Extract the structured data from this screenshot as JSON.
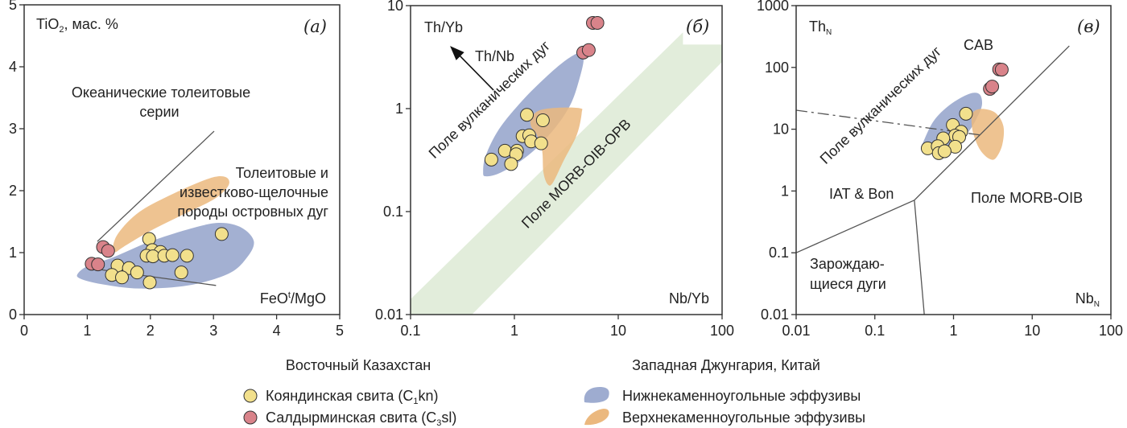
{
  "colors": {
    "yellow": "#f2e08c",
    "red": "#d9838a",
    "blue": "#9eacd0",
    "orange": "#ebb87e",
    "green": "#e2eddb",
    "line": "#555555"
  },
  "chart_data": [
    {
      "id": "a",
      "type": "scatter",
      "panel_label": "(а)",
      "ylabel": {
        "main": "TiO",
        "sub": "2",
        "rest": ", мас. %"
      },
      "xlabel": {
        "main": "FeO",
        "sup": "t",
        "rest": "/MgO"
      },
      "xscale": "linear",
      "yscale": "linear",
      "xlim": [
        0,
        5
      ],
      "ylim": [
        0,
        5
      ],
      "xticks": [
        "0",
        "1",
        "2",
        "3",
        "4",
        "5"
      ],
      "yticks": [
        "0",
        "1",
        "2",
        "3",
        "4",
        "5"
      ],
      "annotations": {
        "oceanic_1": "Океанические толеитовые",
        "oceanic_2": "серии",
        "arc_1": "Толеитовые и",
        "arc_2": "известково-щелочные",
        "arc_3": "породы островных дуг"
      },
      "series": [
        {
          "name": "Кояндинская свита",
          "color": "yellow",
          "points": [
            [
              1.98,
              1.22
            ],
            [
              2.03,
              1.04
            ],
            [
              2.16,
              1.01
            ],
            [
              1.94,
              0.95
            ],
            [
              2.04,
              0.94
            ],
            [
              2.22,
              0.95
            ],
            [
              2.35,
              0.96
            ],
            [
              2.58,
              0.95
            ],
            [
              3.13,
              1.3
            ],
            [
              1.48,
              0.79
            ],
            [
              1.66,
              0.75
            ],
            [
              1.39,
              0.64
            ],
            [
              1.55,
              0.6
            ],
            [
              1.79,
              0.68
            ],
            [
              2.49,
              0.68
            ],
            [
              1.99,
              0.52
            ]
          ]
        },
        {
          "name": "Салдырминская свита",
          "color": "red",
          "points": [
            [
              1.25,
              1.09
            ],
            [
              1.33,
              1.03
            ],
            [
              1.07,
              0.82
            ],
            [
              1.17,
              0.81
            ]
          ]
        }
      ],
      "fields": [
        {
          "name": "Нижнекаменноугольные эффузивы",
          "color": "blue",
          "points": [
            [
              0.85,
              0.66
            ],
            [
              1.02,
              0.79
            ],
            [
              1.4,
              0.92
            ],
            [
              2.0,
              1.18
            ],
            [
              2.68,
              1.4
            ],
            [
              3.11,
              1.48
            ],
            [
              3.45,
              1.4
            ],
            [
              3.64,
              1.18
            ],
            [
              3.53,
              0.92
            ],
            [
              3.24,
              0.66
            ],
            [
              2.6,
              0.47
            ],
            [
              1.83,
              0.42
            ],
            [
              1.23,
              0.49
            ],
            [
              0.89,
              0.58
            ]
          ]
        },
        {
          "name": "Верхнекаменноугольные эффузивы",
          "color": "orange",
          "points": [
            [
              1.4,
              1.05
            ],
            [
              1.49,
              1.31
            ],
            [
              1.83,
              1.66
            ],
            [
              2.38,
              1.96
            ],
            [
              2.94,
              2.2
            ],
            [
              3.19,
              2.22
            ],
            [
              3.24,
              2.09
            ],
            [
              3.02,
              1.87
            ],
            [
              2.51,
              1.61
            ],
            [
              2.0,
              1.35
            ],
            [
              1.57,
              1.09
            ],
            [
              1.45,
              1.01
            ]
          ]
        }
      ],
      "lines": [
        [
          [
            1.16,
            1.18
          ],
          [
            3.01,
            2.96
          ]
        ],
        [
          [
            1.17,
            0.73
          ],
          [
            3.04,
            0.47
          ]
        ]
      ]
    },
    {
      "id": "b",
      "type": "scatter",
      "panel_label": "(б)",
      "ylabel": "Th/Yb",
      "xlabel": "Nb/Yb",
      "arrow_label": "Th/Nb",
      "xscale": "log",
      "yscale": "log",
      "xlim": [
        0.1,
        100
      ],
      "ylim": [
        0.01,
        10
      ],
      "xticks": [
        "0.1",
        "1",
        "10",
        "100"
      ],
      "yticks": [
        "0.01",
        "0.1",
        "1",
        "10"
      ],
      "annotations": {
        "arc_field": "Поле вулканических дуг",
        "morb_field": "Поле MORB-OIB-OPB"
      },
      "series": [
        {
          "name": "Кояндинская свита",
          "color": "yellow",
          "points": [
            [
              1.32,
              0.87
            ],
            [
              1.88,
              0.77
            ],
            [
              1.2,
              0.54
            ],
            [
              1.39,
              0.55
            ],
            [
              1.45,
              0.48
            ],
            [
              1.81,
              0.46
            ],
            [
              0.81,
              0.39
            ],
            [
              1.06,
              0.39
            ],
            [
              1.04,
              0.36
            ],
            [
              0.6,
              0.32
            ],
            [
              0.93,
              0.29
            ]
          ]
        },
        {
          "name": "Салдырминская свита",
          "color": "red",
          "points": [
            [
              5.7,
              6.8
            ],
            [
              6.3,
              6.8
            ],
            [
              4.6,
              3.5
            ],
            [
              5.2,
              3.7
            ]
          ]
        }
      ],
      "band": {
        "color": "green",
        "points": [
          [
            0.1,
            0.0141
          ],
          [
            42,
            5.5
          ],
          [
            42,
            4.19
          ],
          [
            100,
            4.19
          ],
          [
            100,
            2.84
          ],
          [
            0.39,
            0.01
          ],
          [
            0.1,
            0.01
          ]
        ]
      },
      "fields": [
        {
          "name": "Нижнекаменноугольные эффузивы",
          "color": "blue",
          "points": [
            [
              0.5,
              0.243
            ],
            [
              0.53,
              0.35
            ],
            [
              0.71,
              0.63
            ],
            [
              1.15,
              1.15
            ],
            [
              1.85,
              1.87
            ],
            [
              2.97,
              2.84
            ],
            [
              4.25,
              3.5
            ],
            [
              4.64,
              3.01
            ],
            [
              4.25,
              1.98
            ],
            [
              3.55,
              1.15
            ],
            [
              2.64,
              0.71
            ],
            [
              1.74,
              0.44
            ],
            [
              1.15,
              0.31
            ],
            [
              0.71,
              0.235
            ],
            [
              0.53,
              0.22
            ]
          ]
        },
        {
          "name": "Верхнекаменноугольные эффузивы",
          "color": "orange",
          "points": [
            [
              1.45,
              0.81
            ],
            [
              1.74,
              0.96
            ],
            [
              2.64,
              1.02
            ],
            [
              4.25,
              1.01
            ],
            [
              4.45,
              0.91
            ],
            [
              4.0,
              0.56
            ],
            [
              2.97,
              0.31
            ],
            [
              2.34,
              0.19
            ],
            [
              2.08,
              0.185
            ],
            [
              1.9,
              0.243
            ],
            [
              1.85,
              0.39
            ],
            [
              1.64,
              0.56
            ],
            [
              1.45,
              0.67
            ]
          ]
        }
      ],
      "arrow": [
        [
          0.63,
          1.51
        ],
        [
          0.24,
          4.06
        ]
      ]
    },
    {
      "id": "c",
      "type": "scatter",
      "panel_label": "(в)",
      "ylabel": {
        "main": "Th",
        "sub": "N"
      },
      "xlabel": {
        "main": "Nb",
        "sub": "N"
      },
      "xscale": "log",
      "yscale": "log",
      "xlim": [
        0.01,
        100
      ],
      "ylim": [
        0.01,
        1000
      ],
      "xticks": [
        "0.01",
        "0.1",
        "1",
        "10",
        "100"
      ],
      "yticks": [
        "0.01",
        "0.1",
        "1",
        "10",
        "100",
        "1000"
      ],
      "annotations": {
        "arc_field": "Поле вулканических дуг",
        "cab": "CAB",
        "iat": "IAT & Bon",
        "morb": "Поле MORB-OIB",
        "nascent_1": "Зарождаю-",
        "nascent_2": "щиеся дуги"
      },
      "series": [
        {
          "name": "Кояндинская свита",
          "color": "yellow",
          "points": [
            [
              1.44,
              17.8
            ],
            [
              0.98,
              11.7
            ],
            [
              1.25,
              9.1
            ],
            [
              1.05,
              7.9
            ],
            [
              1.18,
              7.5
            ],
            [
              0.74,
              7.1
            ],
            [
              1.05,
              5.2
            ],
            [
              0.47,
              4.9
            ],
            [
              0.63,
              5.3
            ],
            [
              0.65,
              4.1
            ],
            [
              0.77,
              4.4
            ]
          ]
        },
        {
          "name": "Салдырминская свита",
          "color": "red",
          "points": [
            [
              3.8,
              93
            ],
            [
              4.1,
              92
            ],
            [
              2.9,
              45
            ],
            [
              3.1,
              49
            ]
          ]
        }
      ],
      "fields": [
        {
          "name": "Нижнекаменноугольные эффузивы",
          "color": "blue",
          "points": [
            [
              0.41,
              6.1
            ],
            [
              0.56,
              13.6
            ],
            [
              0.9,
              24.8
            ],
            [
              1.55,
              37
            ],
            [
              2.13,
              37
            ],
            [
              2.3,
              24.8
            ],
            [
              1.97,
              15
            ],
            [
              1.55,
              9.1
            ],
            [
              1.05,
              5.5
            ],
            [
              0.65,
              4.1
            ],
            [
              0.44,
              4.1
            ],
            [
              0.39,
              5.0
            ]
          ]
        },
        {
          "name": "Верхнекаменноугольные эффузивы",
          "color": "orange",
          "points": [
            [
              1.75,
              18.4
            ],
            [
              2.3,
              21.3
            ],
            [
              3.41,
              18.4
            ],
            [
              4.31,
              11.1
            ],
            [
              4.15,
              5.5
            ],
            [
              3.41,
              3.36
            ],
            [
              2.8,
              3.36
            ],
            [
              2.21,
              4.5
            ],
            [
              1.89,
              6.8
            ],
            [
              1.71,
              11.1
            ]
          ]
        }
      ],
      "lines": [
        [
          [
            0.01,
            0.1
          ],
          [
            0.318,
            0.71
          ],
          [
            29.6,
            223
          ]
        ],
        [
          [
            0.318,
            0.71
          ],
          [
            0.425,
            0.01
          ]
        ]
      ],
      "dashed_lines": [
        [
          [
            0.01,
            20.3
          ],
          [
            2.13,
            8.1
          ]
        ]
      ]
    }
  ],
  "legend": {
    "group_left": "Восточный Казахстан",
    "group_right": "Западная Джунгария, Китай",
    "yellow": {
      "main": "Кояндинская свита (C",
      "sub": "1",
      "rest": "kn)"
    },
    "red": {
      "main": "Салдырминская свита (C",
      "sub": "3",
      "rest": "sl)"
    },
    "blue": "Нижнекаменноугольные эффузивы",
    "orange": "Верхнекаменноугольные эффузивы"
  }
}
